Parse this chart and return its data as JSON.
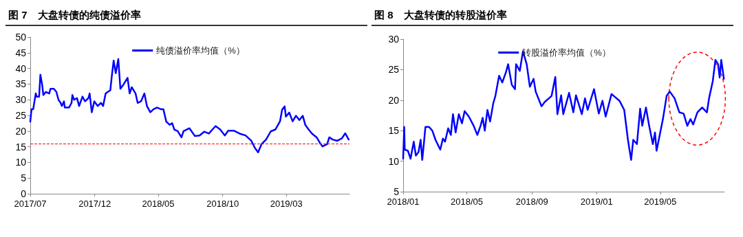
{
  "chart_data": [
    {
      "type": "line",
      "title": "图 7　大盘转债的纯债溢价率",
      "legend": "top",
      "grid": false,
      "marker": "none",
      "line_style": "solid",
      "xlim": [
        "2017-07-01",
        "2019-07-29"
      ],
      "xticks": [
        {
          "value": "2017-07",
          "label": "2017/07"
        },
        {
          "value": "2017-12",
          "label": "2017/12"
        },
        {
          "value": "2018-05",
          "label": "2018/05"
        },
        {
          "value": "2018-10",
          "label": "2018/10"
        },
        {
          "value": "2019-03",
          "label": "2019/03"
        }
      ],
      "ylim": [
        0,
        50
      ],
      "yticks": [
        0,
        5,
        10,
        15,
        20,
        25,
        30,
        35,
        40,
        45,
        50
      ],
      "ref_lines": [
        {
          "axis": "y",
          "value": 16,
          "color": "#ff0000",
          "line_style": "dashed"
        }
      ],
      "series": [
        {
          "name": "纯债溢价率均值（%）",
          "color": "#0000ff",
          "x": [
            "2017-07-01",
            "2017-07-04",
            "2017-07-08",
            "2017-07-14",
            "2017-07-16",
            "2017-07-22",
            "2017-07-25",
            "2017-07-29",
            "2017-08-01",
            "2017-08-07",
            "2017-08-15",
            "2017-08-18",
            "2017-08-26",
            "2017-09-01",
            "2017-09-06",
            "2017-09-11",
            "2017-09-14",
            "2017-09-19",
            "2017-09-21",
            "2017-10-01",
            "2017-10-07",
            "2017-10-09",
            "2017-10-13",
            "2017-10-20",
            "2017-10-25",
            "2017-11-02",
            "2017-11-08",
            "2017-11-16",
            "2017-11-19",
            "2017-11-24",
            "2017-11-30",
            "2017-12-08",
            "2017-12-16",
            "2017-12-21",
            "2017-12-27",
            "2018-01-01",
            "2018-01-07",
            "2018-01-11",
            "2018-01-15",
            "2018-01-20",
            "2018-01-26",
            "2018-01-31",
            "2018-02-08",
            "2018-02-17",
            "2018-02-22",
            "2018-02-27",
            "2018-03-08",
            "2018-03-13",
            "2018-03-21",
            "2018-03-29",
            "2018-04-04",
            "2018-04-12",
            "2018-04-20",
            "2018-04-28",
            "2018-05-07",
            "2018-05-13",
            "2018-05-20",
            "2018-05-28",
            "2018-06-03",
            "2018-06-08",
            "2018-06-16",
            "2018-06-25",
            "2018-06-30",
            "2018-07-14",
            "2018-07-27",
            "2018-08-07",
            "2018-08-18",
            "2018-08-29",
            "2018-09-14",
            "2018-09-25",
            "2018-10-06",
            "2018-10-14",
            "2018-10-28",
            "2018-11-10",
            "2018-11-24",
            "2018-12-08",
            "2018-12-16",
            "2018-12-24",
            "2019-01-01",
            "2019-01-12",
            "2019-01-23",
            "2019-02-03",
            "2019-02-14",
            "2019-02-19",
            "2019-02-25",
            "2019-02-28",
            "2019-03-08",
            "2019-03-16",
            "2019-03-24",
            "2019-04-01",
            "2019-04-09",
            "2019-04-15",
            "2019-04-23",
            "2019-05-01",
            "2019-05-12",
            "2019-05-20",
            "2019-05-26",
            "2019-06-06",
            "2019-06-11",
            "2019-06-19",
            "2019-06-30",
            "2019-07-11",
            "2019-07-19",
            "2019-07-27"
          ],
          "values": [
            23,
            27,
            27,
            32,
            31,
            31,
            38,
            35,
            31.5,
            32.5,
            32,
            33.5,
            33.5,
            32.5,
            30,
            29,
            28,
            29.5,
            27.5,
            27.5,
            29,
            31.5,
            30,
            30.5,
            28,
            31,
            29.5,
            30.5,
            32,
            26,
            29.5,
            28,
            29,
            28,
            32,
            32.5,
            33,
            38,
            42.5,
            38.5,
            43,
            33.5,
            35,
            37,
            32,
            34,
            32,
            29,
            29.5,
            32,
            28,
            26,
            27,
            27.5,
            27,
            27,
            23,
            22,
            22.5,
            20.5,
            20,
            18,
            20,
            20.9,
            18.4,
            18.6,
            19.8,
            19.2,
            21.6,
            20.5,
            18.6,
            20.1,
            20.1,
            19.2,
            18.6,
            16.9,
            14.7,
            13.2,
            15.8,
            17.3,
            19.9,
            20.5,
            23.1,
            26.8,
            27.9,
            24.6,
            25.9,
            23.1,
            24.9,
            23.5,
            24.9,
            22,
            20.5,
            19.2,
            18,
            16.2,
            15.1,
            15.8,
            18,
            17.3,
            16.9,
            17.7,
            19.3,
            17.3
          ]
        }
      ]
    },
    {
      "type": "line",
      "title": "图 8　大盘转债的转股溢价率",
      "legend": "top",
      "grid": false,
      "marker": "none",
      "line_style": "solid",
      "xlim": [
        "2018-01-01",
        "2019-08-30"
      ],
      "xticks": [
        {
          "value": "2018-01",
          "label": "2018/01"
        },
        {
          "value": "2018-05",
          "label": "2018/05"
        },
        {
          "value": "2018-09",
          "label": "2018/09"
        },
        {
          "value": "2019-01",
          "label": "2019/01"
        },
        {
          "value": "2019-05",
          "label": "2019/05"
        }
      ],
      "ylim": [
        5,
        30
      ],
      "yticks": [
        5,
        10,
        15,
        20,
        25,
        30
      ],
      "series": [
        {
          "name": "转股溢价率均值（%）",
          "color": "#0000ff",
          "x": [
            "2018-01-01",
            "2018-01-03",
            "2018-01-04",
            "2018-01-10",
            "2018-01-15",
            "2018-01-21",
            "2018-01-25",
            "2018-01-30",
            "2018-02-03",
            "2018-02-06",
            "2018-02-09",
            "2018-02-12",
            "2018-02-19",
            "2018-02-25",
            "2018-03-03",
            "2018-03-12",
            "2018-03-17",
            "2018-03-21",
            "2018-03-27",
            "2018-04-01",
            "2018-04-05",
            "2018-04-10",
            "2018-04-16",
            "2018-04-22",
            "2018-04-27",
            "2018-05-05",
            "2018-05-14",
            "2018-05-21",
            "2018-05-27",
            "2018-05-31",
            "2018-06-04",
            "2018-06-09",
            "2018-06-14",
            "2018-06-20",
            "2018-06-24",
            "2018-07-01",
            "2018-07-07",
            "2018-07-14",
            "2018-07-18",
            "2018-07-25",
            "2018-07-31",
            "2018-08-02",
            "2018-08-09",
            "2018-08-15",
            "2018-08-22",
            "2018-08-28",
            "2018-09-04",
            "2018-09-08",
            "2018-09-19",
            "2018-09-25",
            "2018-10-08",
            "2018-10-15",
            "2018-10-19",
            "2018-10-26",
            "2018-10-30",
            "2018-11-10",
            "2018-11-18",
            "2018-11-23",
            "2018-12-04",
            "2018-12-10",
            "2018-12-15",
            "2018-12-27",
            "2019-01-05",
            "2019-01-12",
            "2019-01-18",
            "2019-01-29",
            "2019-02-13",
            "2019-02-22",
            "2019-03-01",
            "2019-03-07",
            "2019-03-11",
            "2019-03-18",
            "2019-03-24",
            "2019-03-28",
            "2019-04-04",
            "2019-04-10",
            "2019-04-17",
            "2019-04-21",
            "2019-04-24",
            "2019-05-06",
            "2019-05-13",
            "2019-05-19",
            "2019-05-28",
            "2019-06-06",
            "2019-06-14",
            "2019-06-21",
            "2019-06-27",
            "2019-07-02",
            "2019-07-10",
            "2019-07-19",
            "2019-07-28",
            "2019-08-01",
            "2019-08-08",
            "2019-08-13",
            "2019-08-18",
            "2019-08-21",
            "2019-08-24",
            "2019-08-29"
          ],
          "values": [
            10.4,
            15.6,
            11.9,
            11.7,
            10.4,
            13.2,
            10.9,
            11.5,
            13.5,
            10.2,
            12.8,
            15.6,
            15.6,
            15,
            13.5,
            11.9,
            13.7,
            13.2,
            15.4,
            14.3,
            17.7,
            14.7,
            17.7,
            16.2,
            18.2,
            17.3,
            15.8,
            14.3,
            15.8,
            17.1,
            15,
            18.4,
            16.5,
            19.5,
            20.7,
            24,
            22.9,
            24.6,
            25.9,
            22.5,
            21.8,
            25.9,
            24.8,
            28,
            25.9,
            22.2,
            23.5,
            21.4,
            19,
            19.7,
            20.7,
            23.8,
            17.7,
            20.8,
            17.7,
            21.2,
            18,
            20.8,
            17.7,
            20.3,
            18.4,
            21.8,
            17.8,
            19.9,
            17.3,
            21,
            19.9,
            18.4,
            13.5,
            10.2,
            13.5,
            12.8,
            18.6,
            15.8,
            18.8,
            15.8,
            12.8,
            14.7,
            11.7,
            16.9,
            20.7,
            21.4,
            20.3,
            18,
            17.8,
            15.8,
            16.9,
            16,
            18,
            18.8,
            18,
            20.3,
            23.1,
            26.6,
            25.9,
            23.7,
            26.6,
            23.5
          ]
        }
      ]
    }
  ]
}
